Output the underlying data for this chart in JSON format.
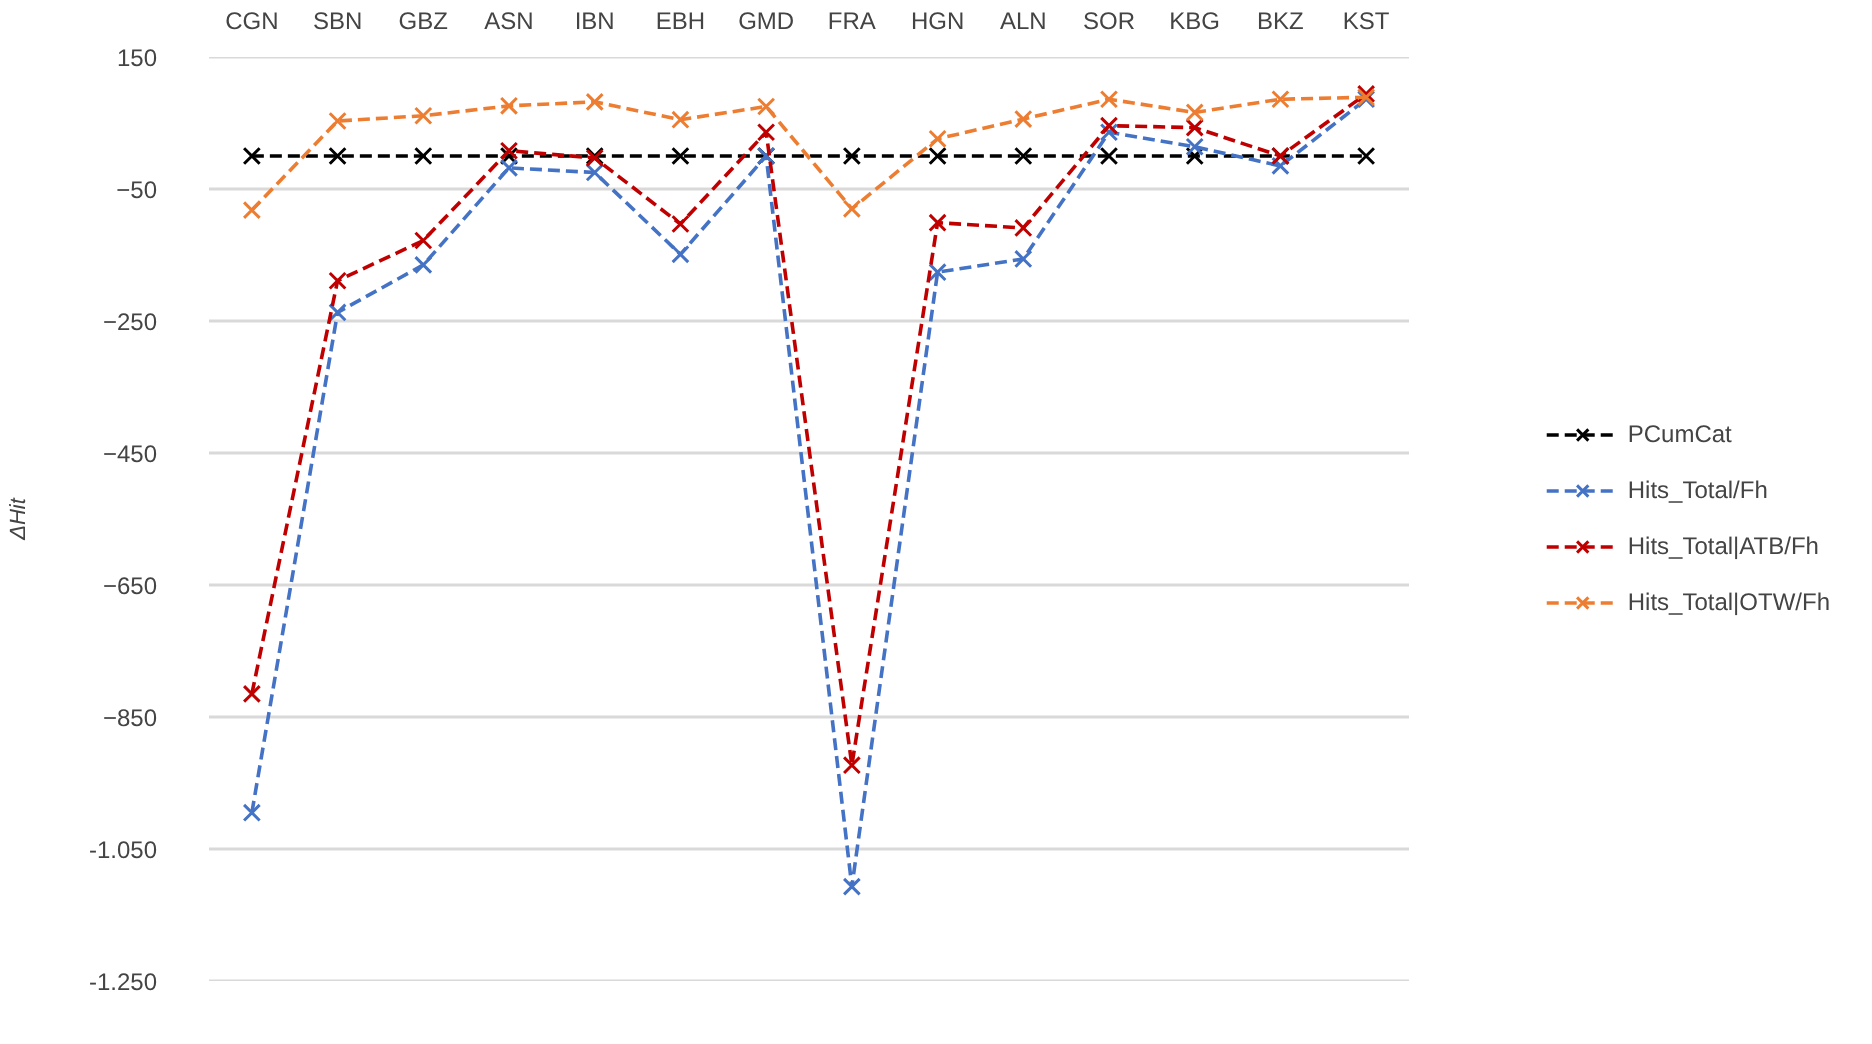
{
  "chart_data": {
    "type": "line",
    "ylabel": "ΔHit",
    "categories": [
      "CGN",
      "SBN",
      "GBZ",
      "ASN",
      "IBN",
      "EBH",
      "GMD",
      "FRA",
      "HGN",
      "ALN",
      "SOR",
      "KBG",
      "BKZ",
      "KST"
    ],
    "series": [
      {
        "name": "PCumCat",
        "color": "#000000",
        "values": [
          0,
          0,
          0,
          0,
          0,
          0,
          0,
          0,
          0,
          0,
          0,
          0,
          0,
          0
        ]
      },
      {
        "name": "Hits_Total/Fh",
        "color": "#4472c4",
        "values": [
          -995,
          -237,
          -165,
          -18,
          -25,
          -149,
          0,
          -1107,
          -176,
          -156,
          36,
          14,
          -15,
          86
        ]
      },
      {
        "name": "Hits_Total|ATB/Fh",
        "color": "#c00000",
        "values": [
          -815,
          -189,
          -128,
          8,
          -3,
          -103,
          36,
          -923,
          -101,
          -109,
          46,
          43,
          0,
          94
        ]
      },
      {
        "name": "Hits_Total|OTW/Fh",
        "color": "#ed7d31",
        "values": [
          -82,
          53,
          61,
          76,
          82,
          55,
          75,
          -80,
          26,
          56,
          86,
          66,
          86,
          89
        ]
      }
    ],
    "ylim": [
      -1250,
      150
    ],
    "yticks": [
      150,
      -50,
      -250,
      -450,
      -650,
      -850,
      {
        "value": -1050,
        "label": "-1.050"
      },
      {
        "value": -1250,
        "label": "-1.250"
      }
    ],
    "grid": "y",
    "legend": "right",
    "marker": "cross",
    "line_style": "dashed"
  }
}
